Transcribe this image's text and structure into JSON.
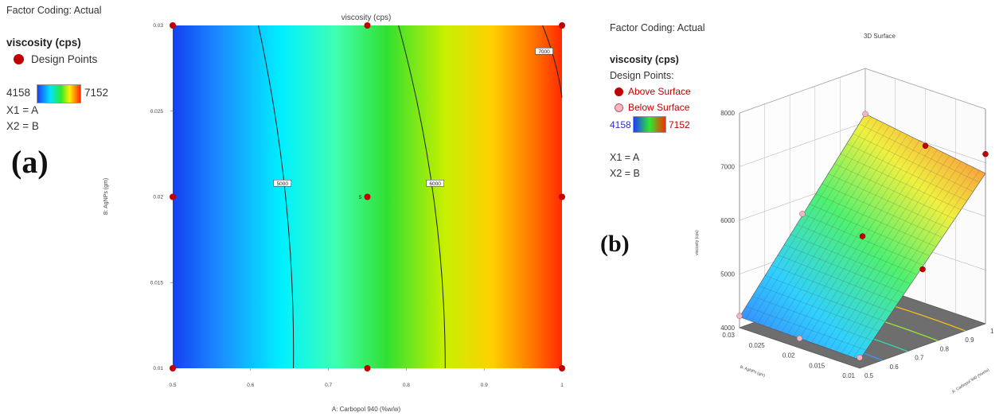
{
  "left_legend": {
    "factor_coding": "Factor Coding: Actual",
    "response": "viscosity (cps)",
    "design_points": "Design Points",
    "range_min": "4158",
    "range_max": "7152",
    "x1": "X1 = A",
    "x2": "X2 = B",
    "panel_label": "(a)"
  },
  "right_legend": {
    "factor_coding": "Factor Coding: Actual",
    "response": "viscosity (cps)",
    "design_points": "Design Points:",
    "above": "Above Surface",
    "below": "Below Surface",
    "range_min": "4158",
    "range_max": "7152",
    "x1": "X1 = A",
    "x2": "X2 = B",
    "panel_label": "(b)"
  },
  "colors": {
    "low": "#1e3cff",
    "mid": "#2ee82e",
    "high": "#ff2a00",
    "design_point": "#c00000",
    "below_point": "#f2b8c0",
    "legend_text_red": "#c00000",
    "legend_text_blue": "#3030c0"
  },
  "chart_data": [
    {
      "type": "heatmap",
      "subtype": "contour",
      "title": "viscosity (cps)",
      "xlabel": "A: Carbopol 940 (%w/w)",
      "ylabel": "B: AgNPs (gm)",
      "xlim": [
        0.5,
        1
      ],
      "ylim": [
        0.01,
        0.03
      ],
      "x_ticks": [
        "0.5",
        "0.6",
        "0.7",
        "0.8",
        "0.9",
        "1"
      ],
      "y_ticks": [
        "0.01",
        "0.015",
        "0.02",
        "0.025",
        "0.03"
      ],
      "colorscale": {
        "min": 4158,
        "max": 7152
      },
      "contours": [
        {
          "level": 5000,
          "label": "5000",
          "points": [
            [
              0.61,
              0.03
            ],
            [
              0.645,
              0.02
            ],
            [
              0.655,
              0.01
            ]
          ]
        },
        {
          "level": 6000,
          "label": "6000",
          "points": [
            [
              0.79,
              0.03
            ],
            [
              0.835,
              0.02
            ],
            [
              0.85,
              0.01
            ]
          ]
        },
        {
          "level": 7000,
          "label": "7000",
          "points": [
            [
              0.975,
              0.03
            ],
            [
              1.0,
              0.0258
            ]
          ]
        }
      ],
      "design_points": [
        {
          "a": 0.5,
          "b": 0.03
        },
        {
          "a": 0.75,
          "b": 0.03
        },
        {
          "a": 1.0,
          "b": 0.03
        },
        {
          "a": 0.5,
          "b": 0.02
        },
        {
          "a": 0.75,
          "b": 0.02,
          "replicates": "5"
        },
        {
          "a": 1.0,
          "b": 0.02
        },
        {
          "a": 0.5,
          "b": 0.01
        },
        {
          "a": 0.75,
          "b": 0.01
        },
        {
          "a": 1.0,
          "b": 0.01
        }
      ]
    },
    {
      "type": "surface",
      "title": "3D Surface",
      "xlabel": "A: Carbopol 940 (%w/w)",
      "ylabel": "B: AgNPs (gm)",
      "zlabel": "viscosity (cps)",
      "xlim": [
        0.5,
        1
      ],
      "ylim": [
        0.01,
        0.03
      ],
      "zlim": [
        4000,
        8000
      ],
      "x_ticks": [
        "0.5",
        "0.6",
        "0.7",
        "0.8",
        "0.9",
        "1"
      ],
      "y_ticks": [
        "0.01",
        "0.015",
        "0.02",
        "0.025",
        "0.03"
      ],
      "z_ticks": [
        "4000",
        "5000",
        "6000",
        "7000",
        "8000"
      ],
      "surface_corners": [
        {
          "a": 0.5,
          "b": 0.03,
          "viscosity": 4200
        },
        {
          "a": 0.5,
          "b": 0.01,
          "viscosity": 4158
        },
        {
          "a": 1.0,
          "b": 0.01,
          "viscosity": 6800
        },
        {
          "a": 1.0,
          "b": 0.03,
          "viscosity": 7152
        }
      ]
    }
  ]
}
